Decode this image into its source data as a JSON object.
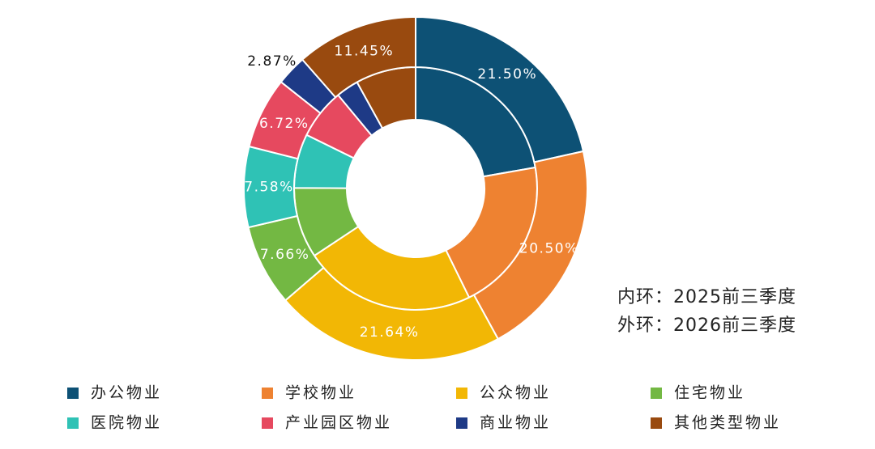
{
  "chart_data": {
    "type": "donut",
    "categories": [
      "办公物业",
      "学校物业",
      "公众物业",
      "住宅物业",
      "医院物业",
      "产业园区物业",
      "商业物业",
      "其他类型物业"
    ],
    "colors": [
      "#0d5175",
      "#ee8231",
      "#f2b705",
      "#73b843",
      "#2fc2b5",
      "#e6495f",
      "#1e3a86",
      "#994a0f"
    ],
    "series": [
      {
        "values": [
          22.2,
          20.5,
          22.9,
          9.4,
          7.2,
          6.7,
          3.0,
          8.0
        ]
      },
      {
        "values": [
          21.5,
          20.5,
          21.64,
          7.66,
          7.58,
          6.72,
          2.87,
          11.45
        ],
        "value_labels": [
          "21.50%",
          "20.50%",
          "21.64%",
          "7.66%",
          "7.58%",
          "6.72%",
          "2.87%",
          "11.45%"
        ]
      }
    ],
    "annotations": [
      "内环：2025前三季度",
      "外环：2026前三季度"
    ]
  }
}
